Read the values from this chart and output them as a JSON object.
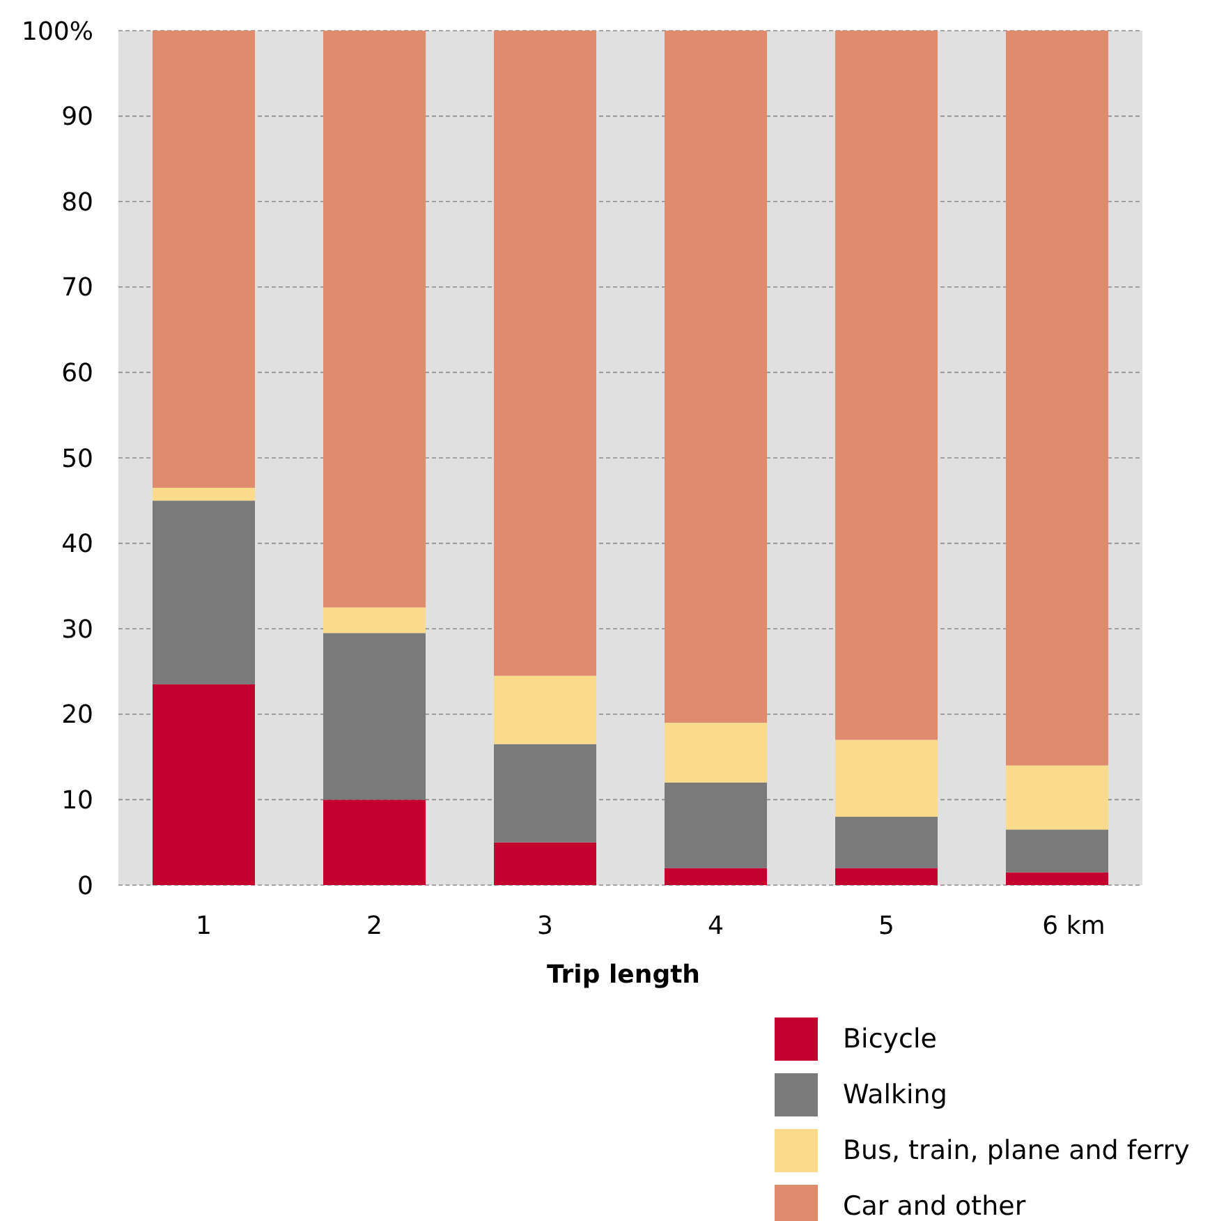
{
  "chart_data": {
    "type": "bar",
    "stacked": true,
    "xlabel": "Trip length",
    "categories": [
      "1",
      "2",
      "3",
      "4",
      "5",
      "6 km"
    ],
    "series": [
      {
        "name": "Bicycle",
        "color": "#c4002f",
        "values": [
          23.5,
          10,
          5,
          2,
          2,
          1.5
        ]
      },
      {
        "name": "Walking",
        "color": "#7a7a7a",
        "values": [
          21.5,
          19.5,
          11.5,
          10,
          6,
          5
        ]
      },
      {
        "name": "Bus, train, plane and ferry",
        "color": "#fadb8c",
        "values": [
          1.5,
          3,
          8,
          7,
          9,
          7.5
        ]
      },
      {
        "name": "Car and other",
        "color": "#e08b6e",
        "values": [
          53.5,
          67.5,
          75.5,
          81,
          83,
          86
        ]
      }
    ],
    "ylim": [
      0,
      100
    ],
    "yticks": [
      0,
      10,
      20,
      30,
      40,
      50,
      60,
      70,
      80,
      90,
      {
        "value": 100,
        "label": "100%"
      }
    ],
    "grid": "y",
    "legend": "bottom right"
  }
}
